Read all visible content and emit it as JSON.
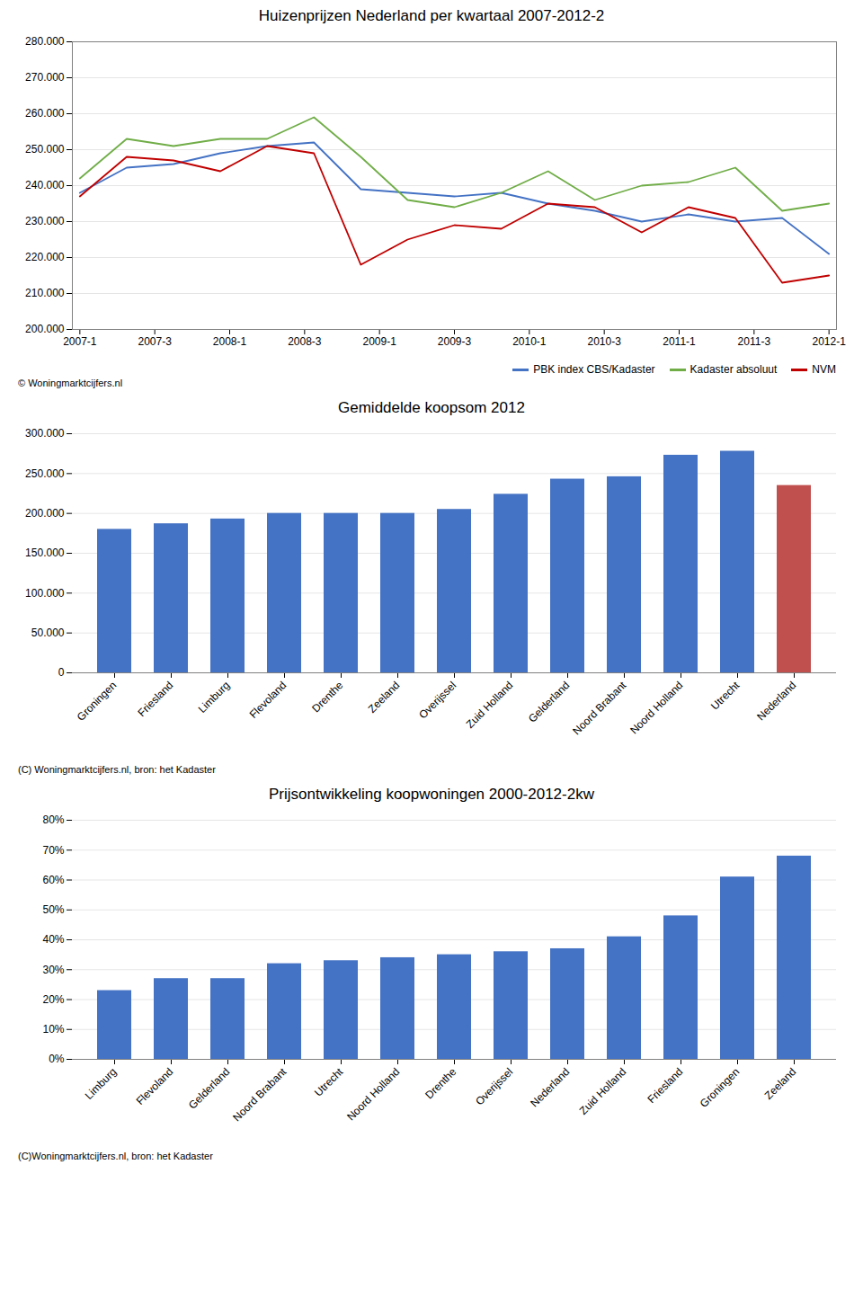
{
  "chart_data": [
    {
      "type": "line",
      "title": "Huizenprijzen Nederland per kwartaal 2007-2012-2",
      "x": [
        0,
        0.625,
        1.25,
        1.875,
        2.5,
        3.125,
        3.75,
        4.375,
        5,
        5.625,
        6.25,
        6.875,
        7.5,
        8.125,
        8.75,
        9.375,
        10
      ],
      "xlim": [
        -0.1,
        10.1
      ],
      "xticks": [
        {
          "value": 0,
          "label": "2007-1"
        },
        {
          "value": 1,
          "label": "2007-3"
        },
        {
          "value": 2,
          "label": "2008-1"
        },
        {
          "value": 3,
          "label": "2008-3"
        },
        {
          "value": 4,
          "label": "2009-1"
        },
        {
          "value": 5,
          "label": "2009-3"
        },
        {
          "value": 6,
          "label": "2010-1"
        },
        {
          "value": 7,
          "label": "2010-3"
        },
        {
          "value": 8,
          "label": "2011-1"
        },
        {
          "value": 9,
          "label": "2011-3"
        },
        {
          "value": 10,
          "label": "2012-1"
        }
      ],
      "series": [
        {
          "name": "PBK index CBS/Kadaster",
          "color": "#4472C4",
          "values": [
            238000,
            245000,
            246000,
            249000,
            251000,
            252000,
            239000,
            238000,
            237000,
            238000,
            235000,
            233000,
            230000,
            232000,
            230000,
            231000,
            221000
          ]
        },
        {
          "name": "Kadaster absoluut",
          "color": "#70AD47",
          "values": [
            242000,
            253000,
            251000,
            253000,
            253000,
            259000,
            248000,
            236000,
            234000,
            238000,
            244000,
            236000,
            240000,
            241000,
            245000,
            233000,
            235000
          ]
        },
        {
          "name": "NVM",
          "color": "#C00000",
          "values": [
            237000,
            248000,
            247000,
            244000,
            251000,
            249000,
            218000,
            225000,
            229000,
            228000,
            235000,
            234000,
            227000,
            234000,
            231000,
            213000,
            215000
          ]
        }
      ],
      "ylim": [
        200000,
        280000
      ],
      "yticks": [
        {
          "value": 200000,
          "label": "200.000"
        },
        {
          "value": 210000,
          "label": "210.000"
        },
        {
          "value": 220000,
          "label": "220.000"
        },
        {
          "value": 230000,
          "label": "230.000"
        },
        {
          "value": 240000,
          "label": "240.000"
        },
        {
          "value": 250000,
          "label": "250.000"
        },
        {
          "value": 260000,
          "label": "260.000"
        },
        {
          "value": 270000,
          "label": "270.000"
        },
        {
          "value": 280000,
          "label": "280.000"
        }
      ],
      "grid": true,
      "legend": "lower right",
      "annotations": [
        "© Woningmarktcijfers.nl"
      ]
    },
    {
      "type": "bar",
      "title": "Gemiddelde koopsom 2012",
      "categories": [
        "Groningen",
        "Friesland",
        "Limburg",
        "Flevoland",
        "Drenthe",
        "Zeeland",
        "Overijssel",
        "Zuid Holland",
        "Gelderland",
        "Noord Brabant",
        "Noord Holland",
        "Utrecht",
        "Nederland"
      ],
      "values": [
        180000,
        187000,
        193000,
        200000,
        200000,
        200000,
        205000,
        224000,
        243000,
        246000,
        273000,
        278000,
        235000
      ],
      "colors": [
        "#4472C4",
        "#4472C4",
        "#4472C4",
        "#4472C4",
        "#4472C4",
        "#4472C4",
        "#4472C4",
        "#4472C4",
        "#4472C4",
        "#4472C4",
        "#4472C4",
        "#4472C4",
        "#C0504D"
      ],
      "ylim": [
        0,
        300000
      ],
      "yticks": [
        0,
        {
          "value": 50000,
          "label": "50.000"
        },
        {
          "value": 100000,
          "label": "100.000"
        },
        {
          "value": 150000,
          "label": "150.000"
        },
        {
          "value": 200000,
          "label": "200.000"
        },
        {
          "value": 250000,
          "label": "250.000"
        },
        {
          "value": 300000,
          "label": "300.000"
        }
      ],
      "grid": true,
      "annotations": [
        "(C) Woningmarktcijfers.nl, bron: het Kadaster"
      ]
    },
    {
      "type": "bar",
      "title": "Prijsontwikkeling  koopwoningen 2000-2012-2kw",
      "categories": [
        "Limburg",
        "Flevoland",
        "Gelderland",
        "Noord Brabant",
        "Utrecht",
        "Noord Holland",
        "Drenthe",
        "Overijssel",
        "Nederland",
        "Zuid Holland",
        "Friesland",
        "Groningen",
        "Zeeland"
      ],
      "values": [
        0.23,
        0.27,
        0.27,
        0.32,
        0.33,
        0.34,
        0.35,
        0.36,
        0.37,
        0.41,
        0.48,
        0.61,
        0.68
      ],
      "color": "#4472C4",
      "ylim": [
        0,
        0.8
      ],
      "yticks": [
        {
          "value": 0,
          "label": "0%"
        },
        {
          "value": 0.1,
          "label": "10%"
        },
        {
          "value": 0.2,
          "label": "20%"
        },
        {
          "value": 0.3,
          "label": "30%"
        },
        {
          "value": 0.4,
          "label": "40%"
        },
        {
          "value": 0.5,
          "label": "50%"
        },
        {
          "value": 0.6,
          "label": "60%"
        },
        {
          "value": 0.7,
          "label": "70%"
        },
        {
          "value": 0.8,
          "label": "80%"
        }
      ],
      "grid": true,
      "annotations": [
        "(C)Woningmarktcijfers.nl, bron: het Kadaster"
      ]
    }
  ]
}
